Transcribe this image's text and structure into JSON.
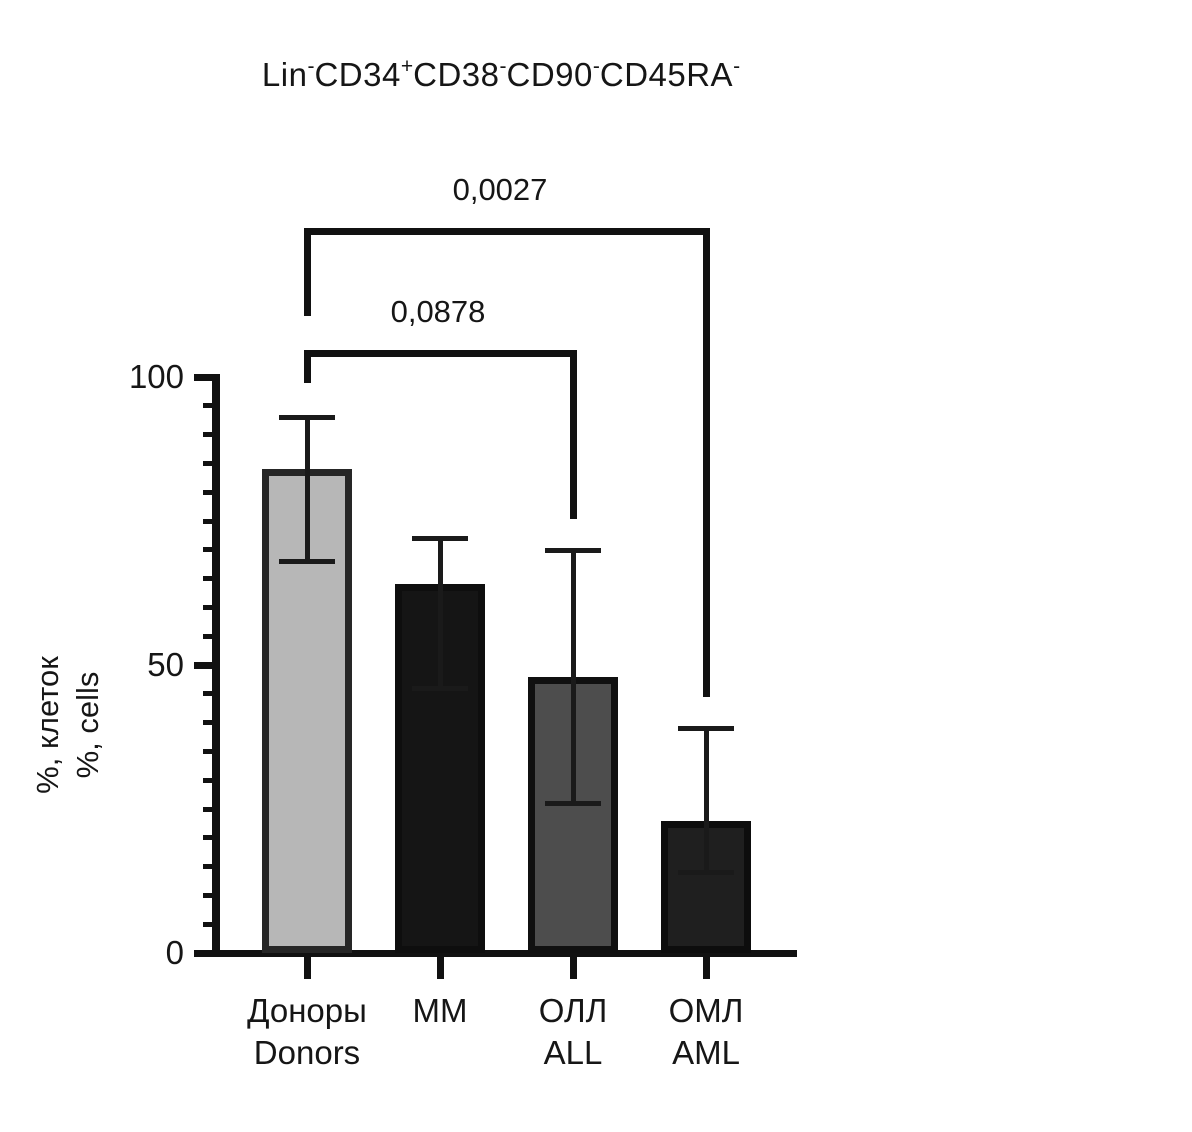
{
  "figure": {
    "title_plain": "Lin-CD34+CD38-CD90-CD45RA-",
    "title_segments": [
      {
        "text": "Lin",
        "sup": "-"
      },
      {
        "text": "CD34",
        "sup": "+"
      },
      {
        "text": "CD38",
        "sup": "-"
      },
      {
        "text": "CD90",
        "sup": "-"
      },
      {
        "text": "CD45RA",
        "sup": "-"
      }
    ],
    "y_axis_label_line1": "%, клеток",
    "y_axis_label_line2": "%, cells"
  },
  "chart_data": {
    "type": "bar",
    "title": "Lin-CD34+CD38-CD90-CD45RA-",
    "ylabel": "%, клеток / %, cells",
    "xlabel": "",
    "ylim": [
      0,
      100
    ],
    "yticks_major": [
      0,
      50,
      100
    ],
    "ytick_minor_step": 5,
    "grid": "off",
    "legend": "none",
    "categories": [
      "Доноры / Donors",
      "ММ",
      "ОЛЛ / ALL",
      "ОМЛ / AML"
    ],
    "values": [
      84,
      64,
      48,
      23
    ],
    "groups": [
      {
        "id": "donors",
        "label_ru": "Доноры",
        "label_en": "Donors",
        "value": 84,
        "err_hi": 93,
        "err_lo": 68,
        "fill": "#b7b7b7",
        "border": "#262626"
      },
      {
        "id": "mm",
        "label_ru": "ММ",
        "label_en": "",
        "value": 64,
        "err_hi": 72,
        "err_lo": 46,
        "fill": "#151515",
        "border": "#0e0e0e"
      },
      {
        "id": "all",
        "label_ru": "ОЛЛ",
        "label_en": "ALL",
        "value": 48,
        "err_hi": 70,
        "err_lo": 26,
        "fill": "#4d4d4d",
        "border": "#101010"
      },
      {
        "id": "aml",
        "label_ru": "ОМЛ",
        "label_en": "AML",
        "value": 23,
        "err_hi": 39,
        "err_lo": 14,
        "fill": "#1f1f1f",
        "border": "#0d0d0d"
      }
    ],
    "comparisons": [
      {
        "group_a": "donors",
        "group_b": "aml",
        "p_label": "0,0027"
      },
      {
        "group_a": "donors",
        "group_b": "all",
        "p_label": "0,0878"
      }
    ],
    "axis_color": "#111111",
    "error_bar_color": "#1a1a1a"
  }
}
